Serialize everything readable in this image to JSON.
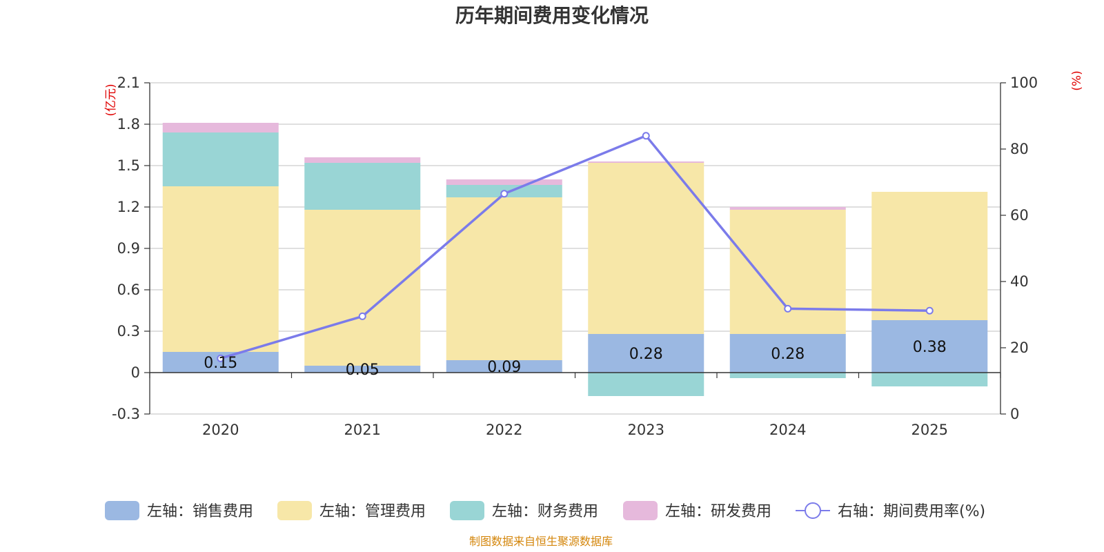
{
  "chart_data": {
    "type": "bar",
    "stacked": true,
    "title": "历年期间费用变化情况",
    "categories": [
      "2020",
      "2021",
      "2022",
      "2023",
      "2024",
      "2025"
    ],
    "left_axis": {
      "unit": "(亿元)",
      "ylim": [
        -0.3,
        2.1
      ],
      "ticks": [
        "2.1",
        "1.8",
        "1.5",
        "1.2",
        "0.9",
        "0.6",
        "0.3",
        "0",
        "-0.3"
      ],
      "tick_values": [
        2.1,
        1.8,
        1.5,
        1.2,
        0.9,
        0.6,
        0.3,
        0,
        -0.3
      ]
    },
    "right_axis": {
      "unit": "(%)",
      "ylim": [
        0,
        100
      ],
      "ticks": [
        "100",
        "80",
        "60",
        "40",
        "20",
        "0"
      ],
      "tick_values": [
        100,
        80,
        60,
        40,
        20,
        0
      ]
    },
    "series": [
      {
        "name": "左轴：销售费用",
        "color": "#9bb8e2",
        "values": [
          0.15,
          0.05,
          0.09,
          0.28,
          0.28,
          0.38
        ],
        "labels": [
          "0.15",
          "0.05",
          "0.09",
          "0.28",
          "0.28",
          "0.38"
        ]
      },
      {
        "name": "左轴：管理费用",
        "color": "#f7e7a8",
        "values": [
          1.2,
          1.13,
          1.18,
          1.24,
          0.9,
          0.93
        ]
      },
      {
        "name": "左轴：财务费用",
        "color": "#99d5d5",
        "values": [
          0.39,
          0.34,
          0.09,
          -0.17,
          -0.04,
          -0.1
        ]
      },
      {
        "name": "左轴：研发费用",
        "color": "#e6b9dc",
        "values": [
          0.07,
          0.04,
          0.04,
          0.01,
          0.02,
          0.0
        ]
      }
    ],
    "line_series": {
      "name": "右轴：期间费用率(%)",
      "color": "#7b7bea",
      "axis": "right",
      "values": [
        16.8,
        29.5,
        66.5,
        84.0,
        31.8,
        31.2
      ]
    }
  },
  "source_text": "制图数据来自恒生聚源数据库"
}
